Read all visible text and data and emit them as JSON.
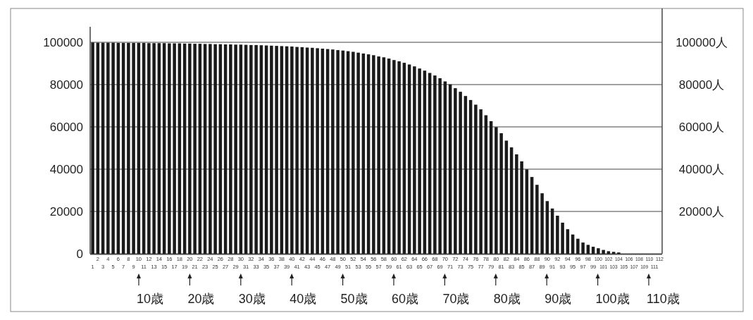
{
  "chart_data": {
    "type": "bar",
    "color": "#1a1a1a",
    "grid": "y",
    "categories": [
      "1",
      "2",
      "3",
      "4",
      "5",
      "6",
      "7",
      "8",
      "9",
      "10",
      "11",
      "12",
      "13",
      "14",
      "15",
      "16",
      "17",
      "18",
      "19",
      "20",
      "21",
      "22",
      "23",
      "24",
      "25",
      "26",
      "27",
      "28",
      "29",
      "30",
      "31",
      "32",
      "33",
      "34",
      "35",
      "36",
      "37",
      "38",
      "39",
      "40",
      "41",
      "42",
      "43",
      "44",
      "45",
      "46",
      "47",
      "48",
      "49",
      "50",
      "51",
      "52",
      "53",
      "54",
      "55",
      "56",
      "57",
      "58",
      "59",
      "60",
      "61",
      "62",
      "63",
      "64",
      "65",
      "66",
      "67",
      "68",
      "69",
      "70",
      "71",
      "72",
      "73",
      "74",
      "75",
      "76",
      "77",
      "78",
      "79",
      "80",
      "81",
      "82",
      "83",
      "84",
      "85",
      "86",
      "87",
      "88",
      "89",
      "90",
      "91",
      "92",
      "93",
      "94",
      "95",
      "96",
      "97",
      "98",
      "99",
      "100",
      "101",
      "102",
      "103",
      "104",
      "105",
      "106",
      "107",
      "108",
      "109",
      "110",
      "111",
      "112"
    ],
    "values": [
      99900,
      99800,
      99800,
      99800,
      99800,
      99700,
      99700,
      99700,
      99700,
      99700,
      99700,
      99600,
      99600,
      99600,
      99600,
      99500,
      99500,
      99500,
      99400,
      99400,
      99300,
      99300,
      99200,
      99200,
      99100,
      99100,
      99000,
      99000,
      98900,
      98900,
      98800,
      98700,
      98700,
      98600,
      98500,
      98400,
      98300,
      98200,
      98100,
      98000,
      97800,
      97700,
      97500,
      97400,
      97200,
      97000,
      96800,
      96600,
      96300,
      96100,
      95800,
      95500,
      95100,
      94700,
      94300,
      93900,
      93300,
      92900,
      92300,
      91600,
      91000,
      90300,
      89500,
      88600,
      87600,
      86600,
      85500,
      84300,
      83000,
      81500,
      80100,
      78300,
      76600,
      74600,
      72700,
      70500,
      68300,
      65500,
      62700,
      59900,
      57000,
      53500,
      50300,
      47000,
      43700,
      39900,
      36300,
      32600,
      28600,
      24900,
      21400,
      18000,
      14700,
      11600,
      9100,
      7100,
      5300,
      4200,
      3300,
      2600,
      1800,
      1200,
      900,
      600,
      0,
      0,
      0,
      0,
      0,
      0,
      0,
      0
    ],
    "ylim": [
      0,
      100000
    ],
    "yticks": [
      0,
      20000,
      40000,
      60000,
      80000,
      100000
    ],
    "y2lim": [
      0,
      100000
    ],
    "y2ticks": [
      {
        "value": 20000,
        "label": "20000人"
      },
      {
        "value": 40000,
        "label": "40000人"
      },
      {
        "value": 60000,
        "label": "60000人"
      },
      {
        "value": 80000,
        "label": "80000人"
      },
      {
        "value": 100000,
        "label": "100000人"
      }
    ],
    "annotations": [
      "10歳",
      "20歳",
      "30歳",
      "40歳",
      "50歳",
      "60歳",
      "70歳",
      "80歳",
      "90歳",
      "100歳",
      "110歳"
    ]
  }
}
